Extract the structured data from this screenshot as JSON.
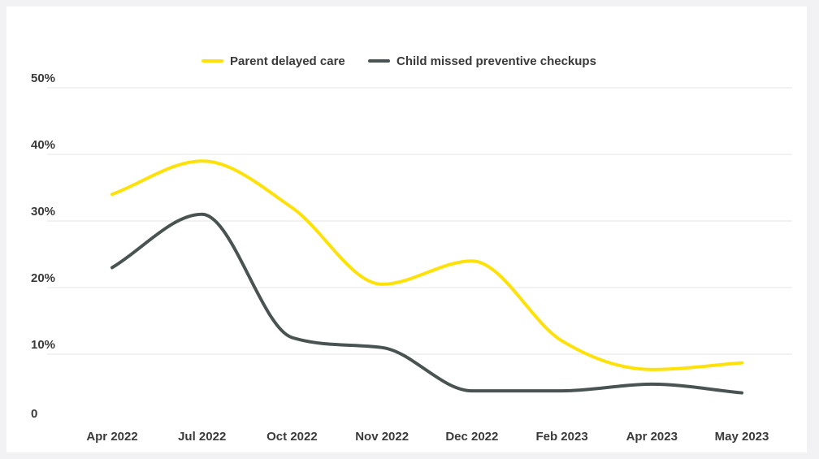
{
  "chart_data": {
    "type": "line",
    "title": "",
    "xlabel": "",
    "ylabel": "",
    "categories": [
      "Apr 2022",
      "Jul 2022",
      "Oct 2022",
      "Nov 2022",
      "Dec 2022",
      "Feb 2023",
      "Apr 2023",
      "May 2023"
    ],
    "series": [
      {
        "name": "Parent delayed care",
        "color": "#ffe10a",
        "values": [
          34,
          39,
          32,
          20.5,
          24,
          12,
          7.7,
          8.7
        ]
      },
      {
        "name": "Child missed preventive checkups",
        "color": "#495452",
        "values": [
          23,
          31,
          12.5,
          11,
          4.5,
          4.5,
          5.5,
          4.2
        ]
      }
    ],
    "yticks": [
      {
        "value": 0,
        "label": "0"
      },
      {
        "value": 10,
        "label": "10%"
      },
      {
        "value": 20,
        "label": "20%"
      },
      {
        "value": 30,
        "label": "30%"
      },
      {
        "value": 40,
        "label": "40%"
      },
      {
        "value": 50,
        "label": "50%"
      }
    ],
    "ylim": [
      0,
      50
    ],
    "grid": true,
    "legend_position": "top-center"
  }
}
